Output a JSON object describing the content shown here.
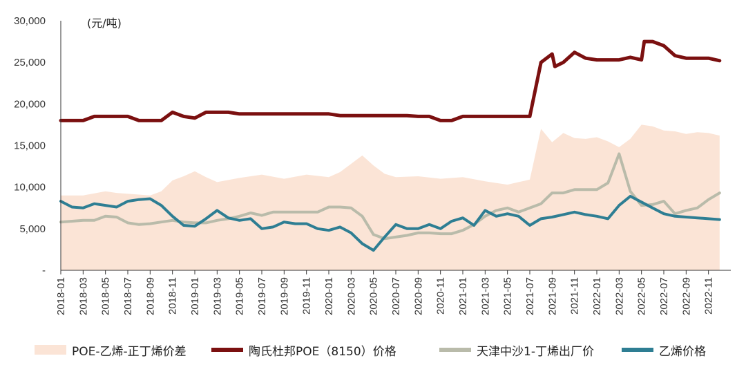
{
  "chart_data": {
    "type": "line",
    "unit_label": "(元/吨)",
    "ylim": [
      0,
      30000
    ],
    "yticks": [
      0,
      5000,
      10000,
      15000,
      20000,
      25000,
      30000
    ],
    "ytick_labels": [
      "-",
      "5,000",
      "10,000",
      "15,000",
      "20,000",
      "25,000",
      "30,000"
    ],
    "xlim": [
      "2018-01",
      "2022-12"
    ],
    "xtick_labels": [
      "2018-01",
      "2018-03",
      "2018-05",
      "2018-07",
      "2018-09",
      "2018-11",
      "2019-01",
      "2019-03",
      "2019-05",
      "2019-07",
      "2019-09",
      "2019-11",
      "2020-01",
      "2020-03",
      "2020-05",
      "2020-07",
      "2020-09",
      "2020-11",
      "2021-01",
      "2021-03",
      "2021-05",
      "2021-07",
      "2021-09",
      "2021-11",
      "2022-01",
      "2022-03",
      "2022-05",
      "2022-07",
      "2022-09",
      "2022-11"
    ],
    "grid": false,
    "legend_position": "bottom",
    "series": [
      {
        "name": "POE-乙烯-正丁烯价差",
        "kind": "area",
        "color": "#fbe4d6",
        "points": [
          [
            "2018-01",
            9000
          ],
          [
            "2018-03",
            9000
          ],
          [
            "2018-05",
            9500
          ],
          [
            "2018-06",
            9300
          ],
          [
            "2018-07",
            9200
          ],
          [
            "2018-09",
            9000
          ],
          [
            "2018-10",
            9500
          ],
          [
            "2018-11",
            10800
          ],
          [
            "2018-12",
            11300
          ],
          [
            "2019-01",
            11900
          ],
          [
            "2019-02",
            11200
          ],
          [
            "2019-03",
            10600
          ],
          [
            "2019-05",
            11100
          ],
          [
            "2019-07",
            11500
          ],
          [
            "2019-09",
            11000
          ],
          [
            "2019-11",
            11500
          ],
          [
            "2020-01",
            11200
          ],
          [
            "2020-02",
            11800
          ],
          [
            "2020-03",
            12800
          ],
          [
            "2020-04",
            13800
          ],
          [
            "2020-05",
            12600
          ],
          [
            "2020-06",
            11600
          ],
          [
            "2020-07",
            11200
          ],
          [
            "2020-09",
            11300
          ],
          [
            "2020-11",
            11000
          ],
          [
            "2021-01",
            11200
          ],
          [
            "2021-03",
            10700
          ],
          [
            "2021-05",
            10300
          ],
          [
            "2021-06",
            10600
          ],
          [
            "2021-07",
            10900
          ],
          [
            "2021-08",
            17000
          ],
          [
            "2021-09",
            15400
          ],
          [
            "2021-10",
            16500
          ],
          [
            "2021-11",
            15900
          ],
          [
            "2021-12",
            15800
          ],
          [
            "2022-01",
            16000
          ],
          [
            "2022-02",
            15500
          ],
          [
            "2022-03",
            14800
          ],
          [
            "2022-04",
            15800
          ],
          [
            "2022-05",
            17500
          ],
          [
            "2022-06",
            17300
          ],
          [
            "2022-07",
            16800
          ],
          [
            "2022-08",
            16700
          ],
          [
            "2022-09",
            16400
          ],
          [
            "2022-10",
            16600
          ],
          [
            "2022-11",
            16500
          ],
          [
            "2022-12",
            16200
          ]
        ]
      },
      {
        "name": "陶氏杜邦POE（8150）价格",
        "kind": "line",
        "color": "#7b1010",
        "points": [
          [
            "2018-01",
            18000
          ],
          [
            "2018-02",
            18000
          ],
          [
            "2018-03",
            18000
          ],
          [
            "2018-04",
            18500
          ],
          [
            "2018-05",
            18500
          ],
          [
            "2018-06",
            18500
          ],
          [
            "2018-07",
            18500
          ],
          [
            "2018-08",
            18000
          ],
          [
            "2018-09",
            18000
          ],
          [
            "2018-10",
            18000
          ],
          [
            "2018-11",
            19000
          ],
          [
            "2018-12",
            18500
          ],
          [
            "2019-01",
            18300
          ],
          [
            "2019-02",
            19000
          ],
          [
            "2019-03",
            19000
          ],
          [
            "2019-04",
            19000
          ],
          [
            "2019-05",
            18800
          ],
          [
            "2019-06",
            18800
          ],
          [
            "2019-07",
            18800
          ],
          [
            "2019-09",
            18800
          ],
          [
            "2019-11",
            18800
          ],
          [
            "2020-01",
            18800
          ],
          [
            "2020-02",
            18600
          ],
          [
            "2020-04",
            18600
          ],
          [
            "2020-06",
            18600
          ],
          [
            "2020-08",
            18600
          ],
          [
            "2020-09",
            18500
          ],
          [
            "2020-10",
            18500
          ],
          [
            "2020-11",
            18000
          ],
          [
            "2020-12",
            18000
          ],
          [
            "2021-01",
            18500
          ],
          [
            "2021-03",
            18500
          ],
          [
            "2021-05",
            18500
          ],
          [
            "2021-07",
            18500
          ],
          [
            "2021-08",
            25000
          ],
          [
            "2021-09",
            26000
          ],
          [
            "2021-09",
            24500
          ],
          [
            "2021-10",
            25000
          ],
          [
            "2021-11",
            26200
          ],
          [
            "2021-12",
            25500
          ],
          [
            "2022-01",
            25300
          ],
          [
            "2022-02",
            25300
          ],
          [
            "2022-03",
            25300
          ],
          [
            "2022-04",
            25600
          ],
          [
            "2022-05",
            25300
          ],
          [
            "2022-05",
            27500
          ],
          [
            "2022-06",
            27500
          ],
          [
            "2022-07",
            27000
          ],
          [
            "2022-08",
            25800
          ],
          [
            "2022-09",
            25500
          ],
          [
            "2022-10",
            25500
          ],
          [
            "2022-11",
            25500
          ],
          [
            "2022-12",
            25200
          ]
        ]
      },
      {
        "name": "天津中沙1-丁烯出厂价",
        "kind": "line",
        "color": "#b9bbaa",
        "points": [
          [
            "2018-01",
            5800
          ],
          [
            "2018-02",
            5900
          ],
          [
            "2018-03",
            6000
          ],
          [
            "2018-04",
            6000
          ],
          [
            "2018-05",
            6500
          ],
          [
            "2018-06",
            6400
          ],
          [
            "2018-07",
            5700
          ],
          [
            "2018-08",
            5500
          ],
          [
            "2018-09",
            5600
          ],
          [
            "2018-10",
            5800
          ],
          [
            "2018-11",
            6000
          ],
          [
            "2018-12",
            5800
          ],
          [
            "2019-01",
            5700
          ],
          [
            "2019-02",
            5700
          ],
          [
            "2019-03",
            6000
          ],
          [
            "2019-04",
            6200
          ],
          [
            "2019-05",
            6500
          ],
          [
            "2019-06",
            6900
          ],
          [
            "2019-07",
            6600
          ],
          [
            "2019-08",
            7000
          ],
          [
            "2019-10",
            7000
          ],
          [
            "2019-12",
            7000
          ],
          [
            "2020-01",
            7600
          ],
          [
            "2020-02",
            7600
          ],
          [
            "2020-03",
            7500
          ],
          [
            "2020-04",
            6500
          ],
          [
            "2020-05",
            4300
          ],
          [
            "2020-06",
            3800
          ],
          [
            "2020-07",
            4000
          ],
          [
            "2020-08",
            4200
          ],
          [
            "2020-09",
            4500
          ],
          [
            "2020-10",
            4500
          ],
          [
            "2020-11",
            4400
          ],
          [
            "2020-12",
            4400
          ],
          [
            "2021-01",
            4800
          ],
          [
            "2021-02",
            5500
          ],
          [
            "2021-03",
            6500
          ],
          [
            "2021-04",
            7200
          ],
          [
            "2021-05",
            7500
          ],
          [
            "2021-06",
            7000
          ],
          [
            "2021-07",
            7500
          ],
          [
            "2021-08",
            8000
          ],
          [
            "2021-09",
            9300
          ],
          [
            "2021-10",
            9300
          ],
          [
            "2021-11",
            9700
          ],
          [
            "2021-12",
            9700
          ],
          [
            "2022-01",
            9700
          ],
          [
            "2022-02",
            10500
          ],
          [
            "2022-03",
            14000
          ],
          [
            "2022-04",
            9500
          ],
          [
            "2022-05",
            7800
          ],
          [
            "2022-06",
            7900
          ],
          [
            "2022-07",
            8300
          ],
          [
            "2022-08",
            6800
          ],
          [
            "2022-09",
            7200
          ],
          [
            "2022-10",
            7500
          ],
          [
            "2022-11",
            8500
          ],
          [
            "2022-12",
            9300
          ]
        ]
      },
      {
        "name": "乙烯价格",
        "kind": "line",
        "color": "#2e7e93",
        "points": [
          [
            "2018-01",
            8300
          ],
          [
            "2018-02",
            7600
          ],
          [
            "2018-03",
            7500
          ],
          [
            "2018-04",
            8000
          ],
          [
            "2018-05",
            7800
          ],
          [
            "2018-06",
            7600
          ],
          [
            "2018-07",
            8300
          ],
          [
            "2018-08",
            8500
          ],
          [
            "2018-09",
            8600
          ],
          [
            "2018-10",
            7800
          ],
          [
            "2018-11",
            6500
          ],
          [
            "2018-12",
            5400
          ],
          [
            "2019-01",
            5300
          ],
          [
            "2019-02",
            6200
          ],
          [
            "2019-03",
            7200
          ],
          [
            "2019-04",
            6300
          ],
          [
            "2019-05",
            6000
          ],
          [
            "2019-06",
            6200
          ],
          [
            "2019-07",
            5000
          ],
          [
            "2019-08",
            5200
          ],
          [
            "2019-09",
            5800
          ],
          [
            "2019-10",
            5600
          ],
          [
            "2019-11",
            5600
          ],
          [
            "2019-12",
            5000
          ],
          [
            "2020-01",
            4800
          ],
          [
            "2020-02",
            5200
          ],
          [
            "2020-03",
            4500
          ],
          [
            "2020-04",
            3200
          ],
          [
            "2020-05",
            2400
          ],
          [
            "2020-06",
            4000
          ],
          [
            "2020-07",
            5500
          ],
          [
            "2020-08",
            5000
          ],
          [
            "2020-09",
            5000
          ],
          [
            "2020-10",
            5500
          ],
          [
            "2020-11",
            5000
          ],
          [
            "2020-12",
            5900
          ],
          [
            "2021-01",
            6300
          ],
          [
            "2021-02",
            5400
          ],
          [
            "2021-03",
            7200
          ],
          [
            "2021-04",
            6500
          ],
          [
            "2021-05",
            6800
          ],
          [
            "2021-06",
            6500
          ],
          [
            "2021-07",
            5400
          ],
          [
            "2021-08",
            6200
          ],
          [
            "2021-09",
            6400
          ],
          [
            "2021-10",
            6700
          ],
          [
            "2021-11",
            7000
          ],
          [
            "2021-12",
            6700
          ],
          [
            "2022-01",
            6500
          ],
          [
            "2022-02",
            6200
          ],
          [
            "2022-03",
            7800
          ],
          [
            "2022-04",
            8900
          ],
          [
            "2022-05",
            8200
          ],
          [
            "2022-06",
            7500
          ],
          [
            "2022-07",
            6800
          ],
          [
            "2022-08",
            6500
          ],
          [
            "2022-09",
            6400
          ],
          [
            "2022-10",
            6300
          ],
          [
            "2022-11",
            6200
          ],
          [
            "2022-12",
            6100
          ]
        ]
      }
    ]
  }
}
